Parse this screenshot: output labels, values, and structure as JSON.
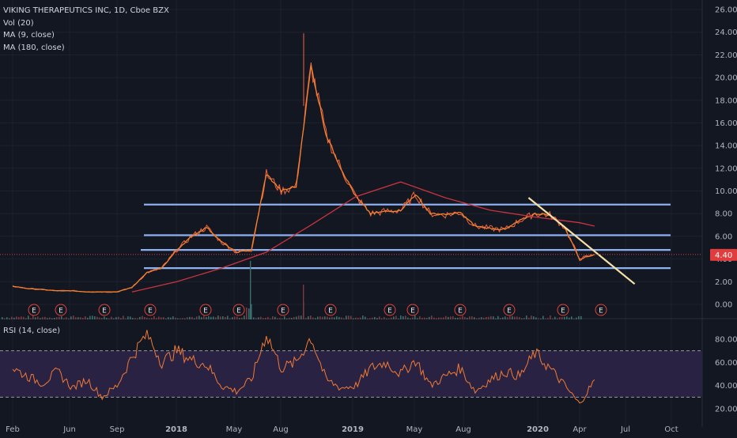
{
  "legend": {
    "symbol": "VIKING THERAPEUTICS INC, 1D, Cboe BZX",
    "vol": "Vol (20)",
    "ma9": "MA (9, close)",
    "ma180": "MA (180, close)"
  },
  "rsi_legend": "RSI (14, close)",
  "price_tag": "4.40",
  "colors": {
    "background": "#131722",
    "price_line": "#f0643c",
    "ma9": "#f3802e",
    "ma180": "#c9343f",
    "support_lines": "#8db0f0",
    "trendline": "#f6e2a6",
    "rsi_line": "#f07a35",
    "rsi_band": "#2a2242",
    "earnings": "#e0443c",
    "axis_text": "#b2b5be",
    "price_tag_bg": "#e23d3d"
  },
  "chart_data": [
    {
      "type": "line",
      "title": "VIKING THERAPEUTICS INC, 1D, Cboe BZX",
      "x_ticks": [
        "Feb",
        "Jun",
        "Sep",
        "2018",
        "May",
        "Aug",
        "2019",
        "May",
        "Aug",
        "2020",
        "Apr",
        "Jul",
        "Oct"
      ],
      "y_ticks": [
        "26.00",
        "24.00",
        "22.00",
        "20.00",
        "18.00",
        "16.00",
        "14.00",
        "12.00",
        "10.00",
        "8.00",
        "6.00",
        "4.00",
        "2.00",
        "0.00"
      ],
      "ylim": [
        0,
        26
      ],
      "series": [
        {
          "x": [
            "2017-01",
            "2017-02",
            "2017-03",
            "2017-04",
            "2017-05",
            "2017-06",
            "2017-07",
            "2017-08",
            "2017-09",
            "2017-10",
            "2017-11",
            "2017-12",
            "2018-01",
            "2018-02",
            "2018-03",
            "2018-04",
            "2018-05",
            "2018-06",
            "2018-07",
            "2018-08",
            "2018-09",
            "2018-10",
            "2018-11",
            "2018-12",
            "2019-01",
            "2019-02",
            "2019-03",
            "2019-04",
            "2019-05",
            "2019-06",
            "2019-07",
            "2019-08",
            "2019-09",
            "2019-10",
            "2019-11",
            "2019-12",
            "2020-01",
            "2020-02",
            "2020-03",
            "2020-04"
          ],
          "values": [
            1.6,
            1.4,
            1.3,
            1.2,
            1.2,
            1.1,
            1.1,
            1.1,
            1.5,
            2.8,
            3.2,
            4.8,
            6.0,
            6.8,
            5.5,
            4.6,
            4.8,
            11.5,
            10.0,
            10.4,
            21.0,
            15.0,
            12.0,
            9.5,
            8.0,
            8.2,
            8.3,
            9.7,
            8.0,
            7.9,
            8.1,
            6.9,
            6.7,
            6.6,
            7.4,
            8.0,
            7.9,
            6.8,
            4.0,
            4.4
          ]
        },
        {
          "name": "MA (180, close)",
          "x": [
            "2017-09",
            "2017-12",
            "2018-03",
            "2018-06",
            "2018-09",
            "2018-12",
            "2019-03",
            "2019-06",
            "2019-09",
            "2019-12",
            "2020-03",
            "2020-04"
          ],
          "values": [
            1.1,
            2.0,
            3.2,
            4.6,
            7.0,
            9.5,
            10.8,
            9.4,
            8.3,
            7.7,
            7.2,
            6.9
          ]
        }
      ],
      "horizontal_lines": [
        8.8,
        6.1,
        4.8,
        3.2
      ],
      "trendline": {
        "from": [
          "2019-12",
          9.4
        ],
        "to": [
          "2020-06",
          1.8
        ]
      },
      "earnings_markers": [
        "E",
        "E",
        "E",
        "E",
        "E",
        "E",
        "E",
        "E",
        "E",
        "E",
        "E",
        "E"
      ],
      "last_price": 4.4
    },
    {
      "type": "line",
      "title": "RSI (14, close)",
      "y_ticks": [
        "80.00",
        "60.00",
        "40.00",
        "20.00"
      ],
      "ylim": [
        15,
        90
      ],
      "band": [
        30,
        70
      ],
      "series": [
        {
          "x": [
            "2017-01",
            "2017-02",
            "2017-03",
            "2017-04",
            "2017-05",
            "2017-06",
            "2017-07",
            "2017-08",
            "2017-09",
            "2017-10",
            "2017-11",
            "2017-12",
            "2018-01",
            "2018-02",
            "2018-03",
            "2018-04",
            "2018-05",
            "2018-06",
            "2018-07",
            "2018-08",
            "2018-09",
            "2018-10",
            "2018-11",
            "2018-12",
            "2019-01",
            "2019-02",
            "2019-03",
            "2019-04",
            "2019-05",
            "2019-06",
            "2019-07",
            "2019-08",
            "2019-09",
            "2019-10",
            "2019-11",
            "2019-12",
            "2020-01",
            "2020-02",
            "2020-03",
            "2020-04"
          ],
          "values": [
            55,
            48,
            42,
            52,
            38,
            45,
            30,
            40,
            65,
            85,
            60,
            70,
            62,
            58,
            40,
            35,
            45,
            85,
            55,
            60,
            82,
            45,
            38,
            40,
            55,
            60,
            50,
            62,
            40,
            48,
            55,
            35,
            45,
            52,
            48,
            68,
            55,
            40,
            24,
            45
          ]
        }
      ]
    }
  ]
}
